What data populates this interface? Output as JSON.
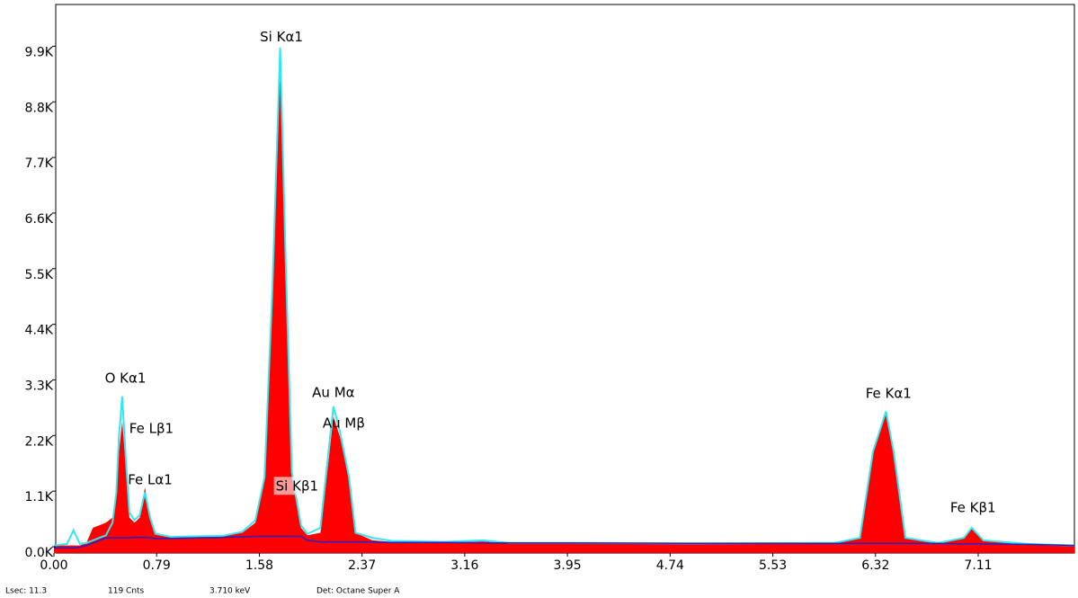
{
  "chart_data": {
    "type": "spectrum",
    "x": [
      0.0,
      0.1,
      0.15,
      0.2,
      0.25,
      0.3,
      0.35,
      0.4,
      0.45,
      0.48,
      0.5,
      0.525,
      0.55,
      0.58,
      0.62,
      0.66,
      0.7,
      0.74,
      0.78,
      0.9,
      1.1,
      1.3,
      1.45,
      1.55,
      1.62,
      1.68,
      1.74,
      1.78,
      1.83,
      1.9,
      1.95,
      2.05,
      2.12,
      2.15,
      2.2,
      2.27,
      2.32,
      2.45,
      2.6,
      3.0,
      3.3,
      3.5,
      4.0,
      5.0,
      6.0,
      6.2,
      6.3,
      6.4,
      6.46,
      6.55,
      6.8,
      7.0,
      7.06,
      7.15,
      7.5,
      7.85
    ],
    "series": [
      {
        "color": "#ff0000",
        "values": [
          150,
          150,
          150,
          150,
          200,
          500,
          550,
          600,
          700,
          1200,
          2000,
          2600,
          1800,
          700,
          600,
          700,
          1300,
          700,
          400,
          330,
          340,
          350,
          400,
          600,
          1500,
          5000,
          9600,
          6000,
          1500,
          500,
          350,
          400,
          2000,
          2700,
          2300,
          1500,
          400,
          250,
          220,
          210,
          230,
          200,
          200,
          190,
          190,
          300,
          2000,
          2800,
          2000,
          300,
          200,
          300,
          500,
          250,
          180,
          150
        ]
      },
      {
        "color": "#33e6f0",
        "values": [
          150,
          180,
          450,
          180,
          200,
          250,
          300,
          350,
          600,
          1200,
          2300,
          3100,
          2000,
          800,
          650,
          750,
          1200,
          700,
          380,
          320,
          330,
          340,
          420,
          650,
          1500,
          5200,
          10000,
          6000,
          1600,
          550,
          380,
          500,
          2200,
          2900,
          2400,
          1500,
          400,
          300,
          240,
          220,
          250,
          200,
          200,
          190,
          200,
          300,
          2000,
          2800,
          2000,
          300,
          200,
          300,
          500,
          250,
          180,
          150
        ]
      },
      {
        "color": "#2222cc",
        "values": [
          100,
          100,
          100,
          120,
          150,
          200,
          250,
          300,
          300,
          300,
          300,
          300,
          300,
          300,
          310,
          310,
          310,
          300,
          290,
          290,
          300,
          310,
          320,
          330,
          330,
          330,
          330,
          330,
          330,
          330,
          250,
          220,
          220,
          220,
          220,
          220,
          220,
          220,
          210,
          210,
          200,
          200,
          200,
          190,
          190,
          190,
          190,
          190,
          190,
          190,
          190,
          180,
          180,
          180,
          170,
          150
        ]
      }
    ],
    "xlim": [
      0,
      7.85
    ],
    "ylim": [
      0,
      10850
    ],
    "xticks": [
      {
        "value": 0,
        "label": "0.00"
      },
      0.79,
      1.58,
      2.37,
      3.16,
      3.95,
      4.74,
      5.53,
      6.32,
      7.11
    ],
    "yticks": [
      {
        "value": 0,
        "label": "0.0K"
      },
      {
        "value": 1100,
        "label": "1.1K"
      },
      {
        "value": 2200,
        "label": "2.2K"
      },
      {
        "value": 3300,
        "label": "3.3K"
      },
      {
        "value": 4400,
        "label": "4.4K"
      },
      {
        "value": 5500,
        "label": "5.5K"
      },
      {
        "value": 6600,
        "label": "6.6K"
      },
      {
        "value": 7700,
        "label": "7.7K"
      },
      {
        "value": 8800,
        "label": "8.8K"
      },
      {
        "value": 9900,
        "label": "9.9K"
      }
    ],
    "annotations": [
      {
        "text": "O  Kα1",
        "x": 0.55,
        "y": 3450
      },
      {
        "text": "Fe Lβ1",
        "x": 0.75,
        "y": 2455
      },
      {
        "text": "Fe Lα1",
        "x": 0.74,
        "y": 1440
      },
      {
        "text": "Si Kα1",
        "x": 1.75,
        "y": 10200
      },
      {
        "text": "Si Kβ1",
        "x": 1.87,
        "y": 1320
      },
      {
        "text": "Au Mα",
        "x": 2.15,
        "y": 3170
      },
      {
        "text": "Au Mβ",
        "x": 2.23,
        "y": 2560
      },
      {
        "text": "Fe Kα1",
        "x": 6.42,
        "y": 3150
      },
      {
        "text": "Fe Kβ1",
        "x": 7.07,
        "y": 890
      }
    ]
  },
  "status_bar": [
    "Lsec: 11.3",
    "119 Cnts",
    "3.710 keV",
    "Det: Octane Super A"
  ]
}
